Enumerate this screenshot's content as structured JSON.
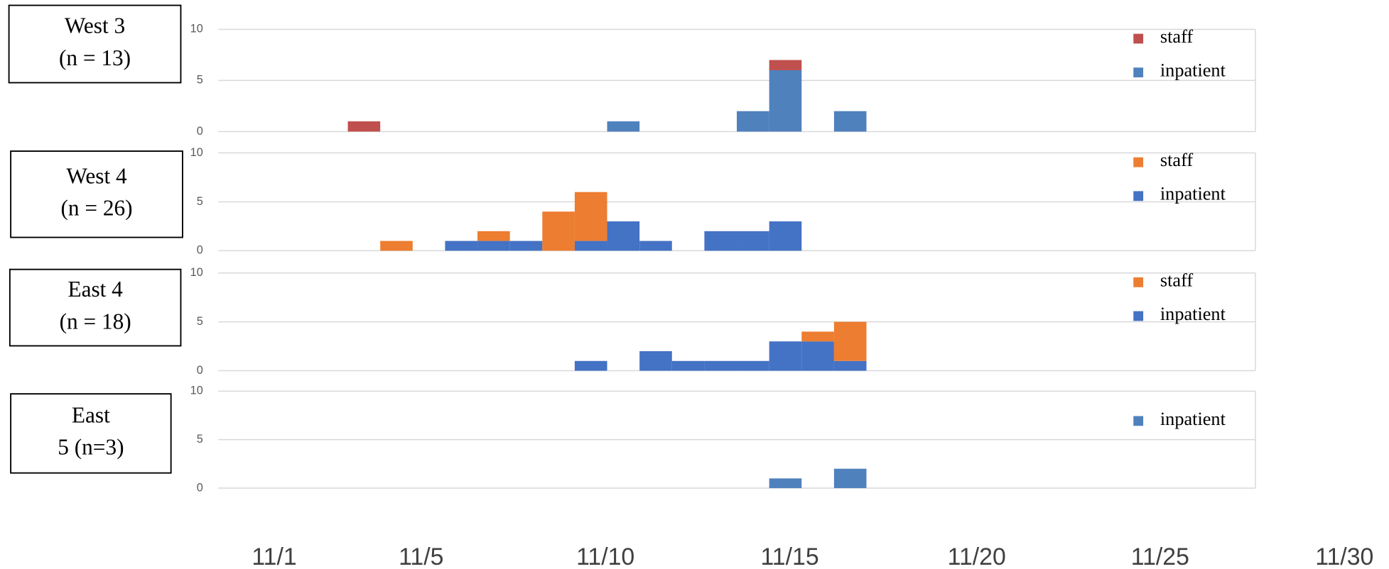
{
  "chart_data": [
    {
      "type": "bar",
      "stacked": true,
      "label_lines": [
        "West 3",
        "(n = 13)"
      ],
      "categories": [
        null,
        null,
        null,
        null,
        null,
        null,
        null,
        null,
        null,
        null,
        null,
        null,
        null,
        null,
        null,
        null,
        null,
        null,
        null,
        null,
        null,
        null,
        null,
        null,
        null,
        null,
        null,
        null,
        null,
        null,
        null,
        null
      ],
      "series": [
        {
          "name": "inpatient",
          "color": "#4f81bd",
          "values": [
            0,
            0,
            0,
            0,
            0,
            0,
            0,
            0,
            0,
            0,
            0,
            0,
            1,
            0,
            0,
            0,
            2,
            6,
            0,
            2,
            0,
            0,
            0,
            0,
            0,
            0,
            0,
            0,
            0,
            0,
            0,
            0
          ]
        },
        {
          "name": "staff",
          "color": "#c0504d",
          "values": [
            0,
            0,
            0,
            0,
            1,
            0,
            0,
            0,
            0,
            0,
            0,
            0,
            0,
            0,
            0,
            0,
            0,
            1,
            0,
            0,
            0,
            0,
            0,
            0,
            0,
            0,
            0,
            0,
            0,
            0,
            0,
            0
          ]
        }
      ],
      "ylim": [
        0,
        10
      ],
      "yticks": [
        0,
        5,
        10
      ],
      "grid": true
    },
    {
      "type": "bar",
      "stacked": true,
      "label_lines": [
        "West 4",
        "(n = 26)"
      ],
      "categories": [
        null,
        null,
        null,
        null,
        null,
        null,
        null,
        null,
        null,
        null,
        null,
        null,
        null,
        null,
        null,
        null,
        null,
        null,
        null,
        null,
        null,
        null,
        null,
        null,
        null,
        null,
        null,
        null,
        null,
        null,
        null,
        null
      ],
      "series": [
        {
          "name": "inpatient",
          "color": "#4472c4",
          "values": [
            0,
            0,
            0,
            0,
            0,
            0,
            0,
            1,
            1,
            1,
            0,
            1,
            3,
            1,
            0,
            2,
            2,
            3,
            0,
            0,
            0,
            0,
            0,
            0,
            0,
            0,
            0,
            0,
            0,
            0,
            0,
            0
          ]
        },
        {
          "name": "staff",
          "color": "#ed7d31",
          "values": [
            0,
            0,
            0,
            0,
            0,
            1,
            0,
            0,
            1,
            0,
            4,
            5,
            0,
            0,
            0,
            0,
            0,
            0,
            0,
            0,
            0,
            0,
            0,
            0,
            0,
            0,
            0,
            0,
            0,
            0,
            0,
            0
          ]
        }
      ],
      "ylim": [
        0,
        10
      ],
      "yticks": [
        0,
        5,
        10
      ],
      "grid": true
    },
    {
      "type": "bar",
      "stacked": true,
      "label_lines": [
        "East 4",
        "(n = 18)"
      ],
      "categories": [
        null,
        null,
        null,
        null,
        null,
        null,
        null,
        null,
        null,
        null,
        null,
        null,
        null,
        null,
        null,
        null,
        null,
        null,
        null,
        null,
        null,
        null,
        null,
        null,
        null,
        null,
        null,
        null,
        null,
        null,
        null,
        null
      ],
      "series": [
        {
          "name": "inpatient",
          "color": "#4472c4",
          "values": [
            0,
            0,
            0,
            0,
            0,
            0,
            0,
            0,
            0,
            0,
            0,
            1,
            0,
            2,
            1,
            1,
            1,
            3,
            3,
            1,
            0,
            0,
            0,
            0,
            0,
            0,
            0,
            0,
            0,
            0,
            0,
            0
          ]
        },
        {
          "name": "staff",
          "color": "#ed7d31",
          "values": [
            0,
            0,
            0,
            0,
            0,
            0,
            0,
            0,
            0,
            0,
            0,
            0,
            0,
            0,
            0,
            0,
            0,
            0,
            1,
            4,
            0,
            0,
            0,
            0,
            0,
            0,
            0,
            0,
            0,
            0,
            0,
            0
          ]
        }
      ],
      "ylim": [
        0,
        10
      ],
      "yticks": [
        0,
        5,
        10
      ],
      "grid": true
    },
    {
      "type": "bar",
      "stacked": true,
      "label_lines": [
        "East",
        "5 (n=3)"
      ],
      "categories": [
        null,
        null,
        null,
        null,
        null,
        null,
        null,
        null,
        null,
        null,
        null,
        null,
        null,
        null,
        null,
        null,
        null,
        null,
        null,
        null,
        null,
        null,
        null,
        null,
        null,
        null,
        null,
        null,
        null,
        null,
        null,
        null
      ],
      "series": [
        {
          "name": "inpatient",
          "color": "#4f81bd",
          "values": [
            0,
            0,
            0,
            0,
            0,
            0,
            0,
            0,
            0,
            0,
            0,
            0,
            0,
            0,
            0,
            0,
            0,
            1,
            0,
            2,
            0,
            0,
            0,
            0,
            0,
            0,
            0,
            0,
            0,
            0,
            0,
            0
          ]
        }
      ],
      "ylim": [
        0,
        10
      ],
      "yticks": [
        0,
        5,
        10
      ],
      "grid": true
    }
  ],
  "x_axis": {
    "labels": [
      "11/1",
      "11/5",
      "11/10",
      "11/15",
      "11/20",
      "11/25",
      "11/30"
    ]
  }
}
